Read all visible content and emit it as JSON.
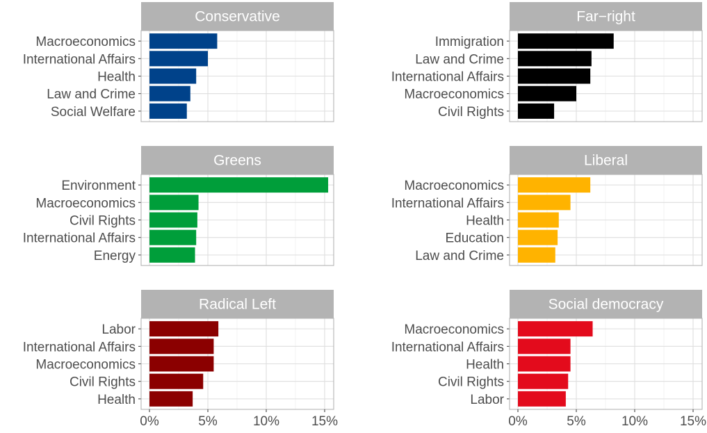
{
  "chart_data": [
    {
      "type": "bar",
      "orientation": "horizontal",
      "title": "Conservative",
      "color": "#00428a",
      "categories": [
        "Macroeconomics",
        "International Affairs",
        "Health",
        "Law and Crime",
        "Social Welfare"
      ],
      "values": [
        5.8,
        5.0,
        4.0,
        3.5,
        3.2
      ],
      "xlim": [
        0,
        16
      ],
      "x_ticks": [
        "0%",
        "5%",
        "10%",
        "15%"
      ]
    },
    {
      "type": "bar",
      "orientation": "horizontal",
      "title": "Far−right",
      "color": "#000000",
      "categories": [
        "Immigration",
        "Law and Crime",
        "International Affairs",
        "Macroeconomics",
        "Civil Rights"
      ],
      "values": [
        8.2,
        6.3,
        6.2,
        5.0,
        3.1
      ],
      "xlim": [
        0,
        16
      ],
      "x_ticks": [
        "0%",
        "5%",
        "10%",
        "15%"
      ]
    },
    {
      "type": "bar",
      "orientation": "horizontal",
      "title": "Greens",
      "color": "#009e3a",
      "categories": [
        "Environment",
        "Macroeconomics",
        "Civil Rights",
        "International Affairs",
        "Energy"
      ],
      "values": [
        15.3,
        4.2,
        4.1,
        4.0,
        3.9
      ],
      "xlim": [
        0,
        16
      ],
      "x_ticks": [
        "0%",
        "5%",
        "10%",
        "15%"
      ]
    },
    {
      "type": "bar",
      "orientation": "horizontal",
      "title": "Liberal",
      "color": "#ffb300",
      "categories": [
        "Macroeconomics",
        "International Affairs",
        "Health",
        "Education",
        "Law and Crime"
      ],
      "values": [
        6.2,
        4.5,
        3.5,
        3.4,
        3.2
      ],
      "xlim": [
        0,
        16
      ],
      "x_ticks": [
        "0%",
        "5%",
        "10%",
        "15%"
      ]
    },
    {
      "type": "bar",
      "orientation": "horizontal",
      "title": "Radical Left",
      "color": "#8b0000",
      "categories": [
        "Labor",
        "International Affairs",
        "Macroeconomics",
        "Civil Rights",
        "Health"
      ],
      "values": [
        5.9,
        5.5,
        5.5,
        4.6,
        3.7
      ],
      "xlim": [
        0,
        16
      ],
      "x_ticks": [
        "0%",
        "5%",
        "10%",
        "15%"
      ]
    },
    {
      "type": "bar",
      "orientation": "horizontal",
      "title": "Social democracy",
      "color": "#e30b1c",
      "categories": [
        "Macroeconomics",
        "International Affairs",
        "Health",
        "Civil Rights",
        "Labor"
      ],
      "values": [
        6.4,
        4.5,
        4.5,
        4.3,
        4.1
      ],
      "xlim": [
        0,
        16
      ],
      "x_ticks": [
        "0%",
        "5%",
        "10%",
        "15%"
      ]
    }
  ]
}
